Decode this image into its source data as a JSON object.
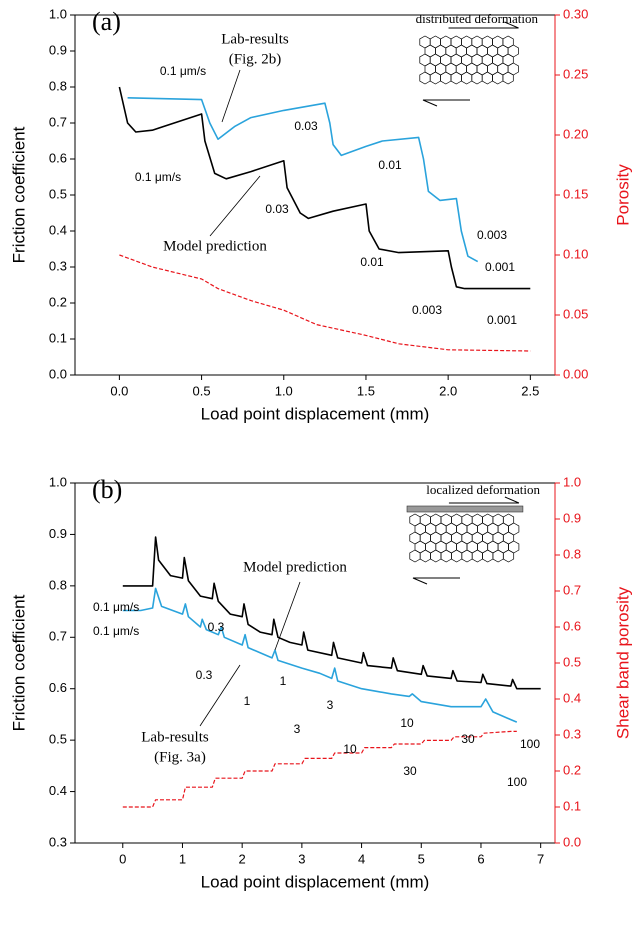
{
  "chart_data": [
    {
      "type": "line",
      "annotations": [
        "(a)",
        "distributed deformation",
        "Lab-results",
        "(Fig. 2b)",
        "Model prediction",
        "0.1 μm/s",
        "0.03",
        "0.01",
        "0.003",
        "0.001",
        "0.1 μm/s",
        "0.03",
        "0.01",
        "0.003",
        "0.001"
      ],
      "xlabel": "Load point displacement (mm)",
      "ylabel": "Friction coefficient",
      "y2label": "Porosity",
      "xlim": [
        -0.27,
        2.65
      ],
      "ylim": [
        0,
        1
      ],
      "y2lim": [
        0,
        0.3
      ],
      "xticks": [
        {
          "value": 0,
          "label": "0.0"
        },
        0.5,
        {
          "value": 1,
          "label": "1.0"
        },
        1.5,
        {
          "value": 2,
          "label": "2.0"
        },
        2.5
      ],
      "yticks": [
        {
          "value": 0,
          "label": "0.0"
        },
        0.1,
        0.2,
        0.3,
        0.4,
        0.5,
        0.6,
        0.7,
        0.8,
        0.9,
        {
          "value": 1,
          "label": "1.0"
        }
      ],
      "y2ticks": [
        {
          "value": 0,
          "label": "0.00"
        },
        {
          "value": 0.05,
          "label": "0.05"
        },
        {
          "value": 0.1,
          "label": "0.10"
        },
        {
          "value": 0.15,
          "label": "0.15"
        },
        {
          "value": 0.2,
          "label": "0.20"
        },
        {
          "value": 0.25,
          "label": "0.25"
        },
        {
          "value": 0.3,
          "label": "0.30"
        }
      ],
      "y2color": "#e8141b",
      "series": [
        {
          "color": "#2aa3dc",
          "x": [
            0.05,
            0.5,
            0.55,
            0.6,
            0.7,
            0.8,
            1.0,
            1.25,
            1.28,
            1.3,
            1.35,
            1.5,
            1.6,
            1.82,
            1.85,
            1.88,
            1.95,
            2.05,
            2.08,
            2.12,
            2.18
          ],
          "values": [
            0.77,
            0.765,
            0.7,
            0.655,
            0.69,
            0.715,
            0.735,
            0.755,
            0.7,
            0.64,
            0.61,
            0.635,
            0.65,
            0.66,
            0.6,
            0.51,
            0.485,
            0.49,
            0.4,
            0.33,
            0.315
          ]
        },
        {
          "color": "#000000",
          "x": [
            0,
            0.05,
            0.1,
            0.2,
            0.5,
            0.52,
            0.58,
            0.65,
            0.8,
            1.0,
            1.02,
            1.1,
            1.15,
            1.3,
            1.5,
            1.52,
            1.58,
            1.7,
            2.0,
            2.02,
            2.05,
            2.1,
            2.5
          ],
          "values": [
            0.8,
            0.7,
            0.675,
            0.68,
            0.725,
            0.65,
            0.56,
            0.545,
            0.565,
            0.595,
            0.52,
            0.45,
            0.435,
            0.455,
            0.475,
            0.4,
            0.35,
            0.34,
            0.345,
            0.3,
            0.245,
            0.24,
            0.24
          ]
        },
        {
          "color": "#e8141b",
          "axis": "y2",
          "dashed": true,
          "x": [
            0,
            0.2,
            0.5,
            0.6,
            0.8,
            1.0,
            1.2,
            1.5,
            1.7,
            2.0,
            2.5
          ],
          "values": [
            0.1,
            0.09,
            0.08,
            0.072,
            0.062,
            0.054,
            0.042,
            0.033,
            0.026,
            0.021,
            0.02
          ]
        }
      ]
    },
    {
      "type": "line",
      "annotations": [
        "(b)",
        "localized deformation",
        "Model prediction",
        "Lab-results",
        "(Fig. 3a)",
        "0.1 μm/s",
        "0.3",
        "1",
        "3",
        "10",
        "30",
        "100",
        "0.1 μm/s",
        "0.3",
        "1",
        "3",
        "10",
        "30",
        "100"
      ],
      "xlabel": "Load point displacement (mm)",
      "ylabel": "Friction coefficient",
      "y2label": "Shear band porosity",
      "xlim": [
        -0.8,
        7.24
      ],
      "ylim": [
        0.3,
        1
      ],
      "y2lim": [
        0,
        1
      ],
      "xticks": [
        0,
        1,
        2,
        3,
        4,
        5,
        6,
        7
      ],
      "yticks": [
        0.3,
        0.4,
        0.5,
        0.6,
        0.7,
        0.8,
        0.9,
        {
          "value": 1,
          "label": "1.0"
        }
      ],
      "y2ticks": [
        {
          "value": 0,
          "label": "0.0"
        },
        0.1,
        0.2,
        0.3,
        0.4,
        0.5,
        0.6,
        0.7,
        0.8,
        0.9,
        {
          "value": 1,
          "label": "1.0"
        }
      ],
      "y2color": "#e8141b",
      "series": [
        {
          "color": "#000000",
          "x": [
            0,
            0.5,
            0.55,
            0.6,
            0.8,
            1.0,
            1.03,
            1.1,
            1.3,
            1.5,
            1.53,
            1.6,
            1.8,
            2.0,
            2.03,
            2.1,
            2.3,
            2.5,
            2.53,
            2.6,
            2.8,
            3.0,
            3.03,
            3.1,
            3.5,
            3.53,
            3.6,
            4.0,
            4.03,
            4.1,
            4.5,
            4.53,
            4.6,
            5.0,
            5.03,
            5.1,
            5.5,
            5.53,
            5.6,
            6.0,
            6.03,
            6.1,
            6.5,
            6.53,
            6.6,
            7.0
          ],
          "values": [
            0.8,
            0.8,
            0.895,
            0.85,
            0.82,
            0.815,
            0.855,
            0.81,
            0.78,
            0.775,
            0.805,
            0.77,
            0.745,
            0.74,
            0.765,
            0.725,
            0.71,
            0.705,
            0.735,
            0.7,
            0.69,
            0.685,
            0.71,
            0.675,
            0.665,
            0.69,
            0.66,
            0.65,
            0.67,
            0.645,
            0.64,
            0.66,
            0.635,
            0.628,
            0.645,
            0.625,
            0.62,
            0.635,
            0.615,
            0.612,
            0.628,
            0.61,
            0.605,
            0.618,
            0.6,
            0.6
          ]
        },
        {
          "color": "#2aa3dc",
          "x": [
            0,
            0.3,
            0.5,
            0.55,
            0.65,
            1.0,
            1.05,
            1.1,
            1.3,
            1.33,
            1.4,
            1.6,
            1.65,
            1.7,
            2.0,
            2.05,
            2.1,
            2.5,
            2.55,
            2.6,
            3.0,
            3.3,
            3.5,
            3.55,
            3.6,
            4.0,
            4.25,
            4.5,
            4.8,
            4.85,
            5.0,
            5.5,
            6.0,
            6.08,
            6.2,
            6.5,
            6.6
          ],
          "values": [
            0.752,
            0.752,
            0.757,
            0.795,
            0.76,
            0.745,
            0.765,
            0.74,
            0.72,
            0.735,
            0.715,
            0.705,
            0.72,
            0.7,
            0.685,
            0.705,
            0.68,
            0.66,
            0.675,
            0.655,
            0.64,
            0.63,
            0.62,
            0.64,
            0.615,
            0.6,
            0.595,
            0.59,
            0.585,
            0.59,
            0.575,
            0.565,
            0.565,
            0.58,
            0.555,
            0.54,
            0.535
          ]
        },
        {
          "color": "#e8141b",
          "axis": "y2",
          "dashed": true,
          "x": [
            0,
            0.5,
            0.55,
            1.0,
            1.05,
            1.5,
            1.55,
            2.0,
            2.05,
            2.5,
            2.55,
            3.0,
            3.05,
            3.5,
            3.55,
            4.0,
            4.05,
            4.5,
            4.55,
            5.0,
            5.05,
            5.5,
            5.55,
            6.0,
            6.05,
            6.5,
            6.6
          ],
          "values": [
            0.1,
            0.1,
            0.12,
            0.12,
            0.155,
            0.155,
            0.18,
            0.18,
            0.2,
            0.2,
            0.22,
            0.22,
            0.235,
            0.235,
            0.25,
            0.25,
            0.265,
            0.265,
            0.275,
            0.275,
            0.285,
            0.285,
            0.295,
            0.295,
            0.305,
            0.31,
            0.31
          ]
        }
      ]
    }
  ]
}
